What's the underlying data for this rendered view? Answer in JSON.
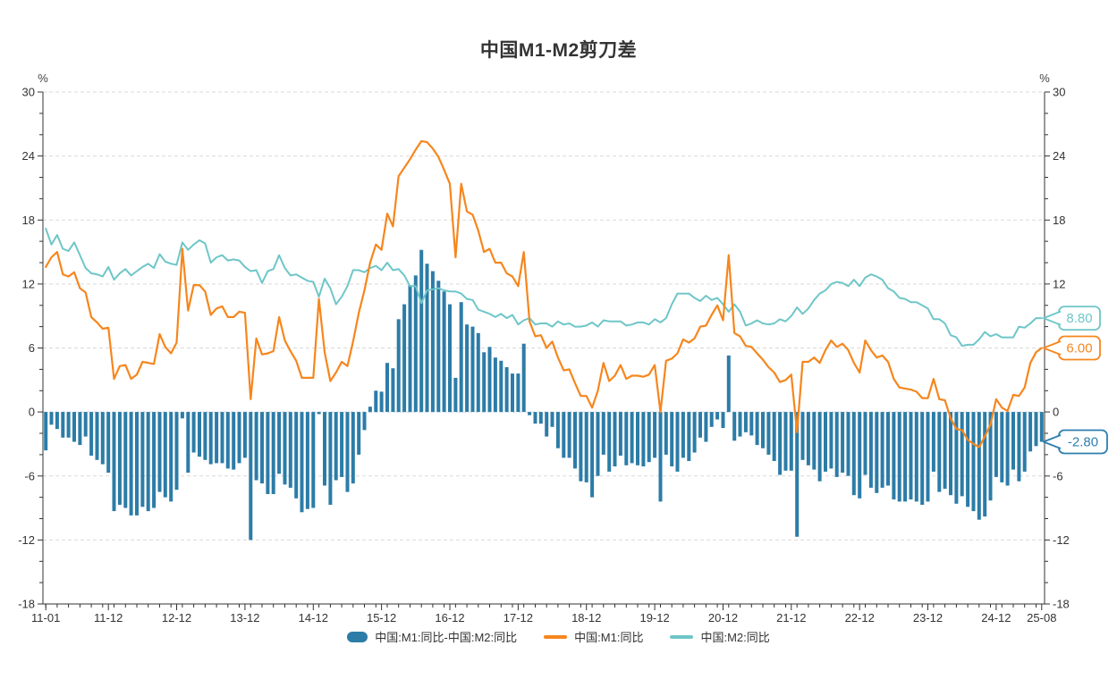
{
  "title": "中国M1-M2剪刀差",
  "legend": {
    "items": [
      {
        "label": "中国:M1:同比-中国:M2:同比",
        "type": "bar",
        "color": "#2c7ca7"
      },
      {
        "label": "中国:M1:同比",
        "type": "line",
        "color": "#f6861d"
      },
      {
        "label": "中国:M2:同比",
        "type": "line",
        "color": "#6ec6c8"
      }
    ]
  },
  "end_labels": [
    {
      "series": "m2",
      "text": "8.80",
      "value": 8.8,
      "color": "#6ec6c8"
    },
    {
      "series": "m1",
      "text": "6.00",
      "value": 6.0,
      "color": "#f6861d"
    },
    {
      "series": "diff",
      "text": "-2.80",
      "value": -2.8,
      "color": "#2e7eae"
    }
  ],
  "colors": {
    "bar": "#2c7ca7",
    "m1_line": "#f6861d",
    "m2_line": "#6ec6c8",
    "grid": "#d9d9d9",
    "axis": "#333333",
    "text": "#333333",
    "background": "#ffffff"
  },
  "chart_data": {
    "type": "bar",
    "subtype": "combo bar + two lines, dual mirrored y axes",
    "title": "中国M1-M2剪刀差",
    "frequency": "monthly",
    "x_start": "2011-01",
    "x_end": "2025-08",
    "ylim": [
      -18,
      30
    ],
    "grid": "dashed horizontal lines at major y ticks",
    "legend_position": "bottom center",
    "y_axis": {
      "unit": "%",
      "major_ticks": [
        30,
        24,
        18,
        12,
        6,
        0,
        -6,
        -12,
        -18
      ],
      "major_step": 6,
      "minor_step": 2
    },
    "x_axis": {
      "minor_tick_every_months": 2,
      "labels": [
        {
          "m": 0,
          "text": "11-01"
        },
        {
          "m": 11,
          "text": "11-12"
        },
        {
          "m": 23,
          "text": "12-12"
        },
        {
          "m": 35,
          "text": "13-12"
        },
        {
          "m": 47,
          "text": "14-12"
        },
        {
          "m": 59,
          "text": "15-12"
        },
        {
          "m": 71,
          "text": "16-12"
        },
        {
          "m": 83,
          "text": "17-12"
        },
        {
          "m": 95,
          "text": "18-12"
        },
        {
          "m": 107,
          "text": "19-12"
        },
        {
          "m": 119,
          "text": "20-12"
        },
        {
          "m": 131,
          "text": "21-12"
        },
        {
          "m": 143,
          "text": "22-12"
        },
        {
          "m": 155,
          "text": "23-12"
        },
        {
          "m": 167,
          "text": "24-12"
        },
        {
          "m": 175,
          "text": "25-08"
        }
      ]
    },
    "series": [
      {
        "name": "中国:M1:同比-中国:M2:同比",
        "type": "bar",
        "color": "#2c7ca7",
        "last_value_label": "-2.80",
        "values": [
          -3.6,
          -1.2,
          -1.6,
          -2.4,
          -2.4,
          -2.8,
          -3.1,
          -2.3,
          -4.1,
          -4.5,
          -4.9,
          -5.7,
          -9.3,
          -8.7,
          -9.0,
          -9.7,
          -9.7,
          -8.9,
          -9.3,
          -9.0,
          -7.5,
          -8.0,
          -8.4,
          -7.3,
          -0.6,
          -5.7,
          -3.8,
          -4.2,
          -4.5,
          -4.9,
          -4.8,
          -4.8,
          -5.3,
          -5.4,
          -4.8,
          -4.3,
          -12.0,
          -6.4,
          -6.7,
          -7.7,
          -7.7,
          -5.8,
          -6.8,
          -7.1,
          -8.1,
          -9.4,
          -9.1,
          -9.0,
          -0.2,
          -6.9,
          -8.7,
          -6.4,
          -6.1,
          -7.5,
          -6.7,
          -4.0,
          -1.7,
          0.5,
          2.0,
          1.9,
          4.6,
          4.1,
          8.7,
          10.1,
          11.9,
          12.8,
          15.2,
          13.9,
          13.2,
          12.3,
          11.3,
          10.1,
          3.2,
          10.3,
          8.2,
          8.0,
          7.4,
          5.6,
          6.1,
          5.1,
          4.8,
          4.2,
          3.6,
          3.6,
          6.4,
          -0.3,
          -1.1,
          -1.1,
          -2.3,
          -1.4,
          -3.4,
          -4.3,
          -4.3,
          -5.3,
          -6.5,
          -6.6,
          -8.0,
          -6.0,
          -4.0,
          -5.6,
          -5.1,
          -4.1,
          -5.0,
          -4.8,
          -5.0,
          -5.1,
          -4.7,
          -4.3,
          -8.4,
          -4.0,
          -5.1,
          -5.6,
          -4.3,
          -4.6,
          -3.8,
          -2.4,
          -2.8,
          -1.4,
          -0.7,
          -1.5,
          5.3,
          -2.7,
          -2.3,
          -1.9,
          -2.2,
          -3.1,
          -3.4,
          -4.0,
          -4.6,
          -5.9,
          -5.5,
          -5.5,
          -11.7,
          -4.5,
          -5.0,
          -5.4,
          -6.5,
          -5.6,
          -5.3,
          -6.1,
          -5.7,
          -6.0,
          -7.8,
          -8.1,
          -5.9,
          -7.1,
          -7.6,
          -7.1,
          -6.9,
          -8.2,
          -8.4,
          -8.4,
          -8.2,
          -8.4,
          -8.7,
          -8.4,
          -5.6,
          -7.5,
          -7.2,
          -7.8,
          -8.6,
          -7.9,
          -8.9,
          -9.3,
          -10.1,
          -9.8,
          -8.3,
          -6.1,
          -6.6,
          -6.9,
          -5.4,
          -6.5,
          -5.6,
          -3.7,
          -3.2,
          -2.8
        ]
      },
      {
        "name": "中国:M1:同比",
        "type": "line",
        "color": "#f6861d",
        "last_value_label": "6.00",
        "values": [
          13.6,
          14.5,
          15.0,
          12.9,
          12.7,
          13.1,
          11.6,
          11.2,
          8.9,
          8.4,
          7.8,
          7.9,
          3.1,
          4.3,
          4.4,
          3.1,
          3.5,
          4.7,
          4.6,
          4.5,
          7.3,
          6.1,
          5.5,
          6.5,
          15.3,
          9.5,
          11.9,
          11.9,
          11.3,
          9.1,
          9.7,
          9.9,
          8.9,
          8.9,
          9.4,
          9.3,
          1.2,
          6.9,
          5.4,
          5.5,
          5.7,
          8.9,
          6.7,
          5.7,
          4.8,
          3.2,
          3.2,
          3.2,
          10.6,
          5.6,
          2.9,
          3.7,
          4.7,
          4.3,
          6.6,
          9.3,
          11.4,
          14.0,
          15.7,
          15.2,
          18.6,
          17.4,
          22.1,
          22.9,
          23.7,
          24.6,
          25.4,
          25.3,
          24.7,
          23.9,
          22.7,
          21.4,
          14.5,
          21.4,
          18.8,
          18.5,
          17.0,
          15.0,
          15.3,
          14.0,
          14.0,
          13.0,
          12.7,
          11.8,
          15.0,
          8.5,
          7.1,
          7.2,
          6.0,
          6.6,
          5.1,
          3.9,
          4.0,
          2.7,
          1.5,
          1.5,
          0.4,
          2.0,
          4.6,
          2.9,
          3.4,
          4.4,
          3.1,
          3.4,
          3.4,
          3.3,
          3.5,
          4.4,
          0.0,
          4.8,
          5.0,
          5.5,
          6.8,
          6.5,
          6.9,
          8.0,
          8.1,
          9.1,
          10.0,
          8.6,
          14.7,
          7.4,
          7.1,
          6.2,
          6.1,
          5.5,
          4.9,
          4.2,
          3.7,
          2.8,
          3.0,
          3.5,
          -1.9,
          4.7,
          4.7,
          5.1,
          4.6,
          5.8,
          6.7,
          6.1,
          6.4,
          5.8,
          4.6,
          3.7,
          6.7,
          5.8,
          5.1,
          5.3,
          4.7,
          3.1,
          2.3,
          2.2,
          2.1,
          1.9,
          1.3,
          1.3,
          3.1,
          1.2,
          1.1,
          -0.6,
          -1.6,
          -1.7,
          -2.6,
          -3.0,
          -3.3,
          -2.3,
          -1.2,
          1.2,
          0.4,
          0.1,
          1.6,
          1.5,
          2.3,
          4.6,
          5.6,
          6.0
        ]
      },
      {
        "name": "中国:M2:同比",
        "type": "line",
        "color": "#6ec6c8",
        "last_value_label": "8.80",
        "values": [
          17.2,
          15.7,
          16.6,
          15.3,
          15.1,
          15.9,
          14.7,
          13.5,
          13.0,
          12.9,
          12.7,
          13.6,
          12.4,
          13.0,
          13.4,
          12.8,
          13.2,
          13.6,
          13.9,
          13.5,
          14.8,
          14.1,
          13.9,
          13.8,
          15.9,
          15.2,
          15.7,
          16.1,
          15.8,
          14.0,
          14.5,
          14.7,
          14.2,
          14.3,
          14.2,
          13.6,
          13.2,
          13.3,
          12.1,
          13.2,
          13.4,
          14.7,
          13.5,
          12.8,
          12.9,
          12.6,
          12.3,
          12.2,
          10.8,
          12.5,
          11.6,
          10.1,
          10.8,
          11.8,
          13.3,
          13.3,
          13.1,
          13.5,
          13.7,
          13.3,
          14.0,
          13.3,
          13.4,
          12.8,
          11.8,
          11.8,
          10.2,
          11.4,
          11.5,
          11.6,
          11.4,
          11.3,
          11.3,
          11.1,
          10.6,
          10.5,
          9.6,
          9.4,
          9.2,
          8.9,
          9.2,
          8.8,
          9.1,
          8.2,
          8.6,
          8.8,
          8.2,
          8.3,
          8.3,
          8.0,
          8.5,
          8.2,
          8.3,
          8.0,
          8.0,
          8.1,
          8.4,
          8.0,
          8.6,
          8.5,
          8.5,
          8.5,
          8.1,
          8.2,
          8.4,
          8.4,
          8.2,
          8.7,
          8.4,
          8.8,
          10.1,
          11.1,
          11.1,
          11.1,
          10.7,
          10.4,
          10.9,
          10.5,
          10.7,
          10.1,
          9.4,
          10.1,
          9.4,
          8.1,
          8.3,
          8.6,
          8.3,
          8.2,
          8.3,
          8.7,
          8.5,
          9.0,
          9.8,
          9.2,
          9.7,
          10.5,
          11.1,
          11.4,
          12.0,
          12.2,
          12.1,
          11.8,
          12.4,
          11.8,
          12.6,
          12.9,
          12.7,
          12.4,
          11.6,
          11.3,
          10.7,
          10.6,
          10.3,
          10.3,
          10.0,
          9.7,
          8.7,
          8.7,
          8.3,
          7.2,
          7.0,
          6.2,
          6.3,
          6.3,
          6.8,
          7.5,
          7.1,
          7.3,
          7.0,
          7.0,
          7.0,
          8.0,
          7.9,
          8.3,
          8.8,
          8.8
        ]
      }
    ]
  }
}
